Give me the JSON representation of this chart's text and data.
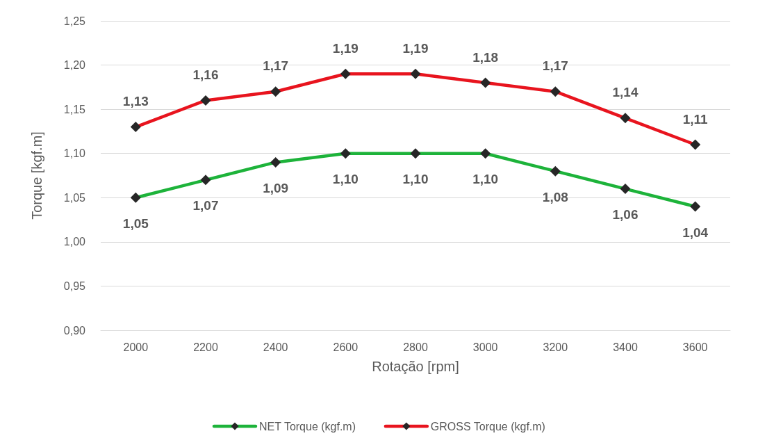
{
  "chart_data": {
    "type": "line",
    "xlabel": "Rotação [rpm]",
    "ylabel": "Torque [kgf.m]",
    "categories": [
      "2000",
      "2200",
      "2400",
      "2600",
      "2800",
      "3000",
      "3200",
      "3400",
      "3600"
    ],
    "series": [
      {
        "name": "NET Torque (kgf.m)",
        "color": "#1db33a",
        "values": [
          1.05,
          1.07,
          1.09,
          1.1,
          1.1,
          1.1,
          1.08,
          1.06,
          1.04
        ],
        "value_labels": [
          "1,05",
          "1,07",
          "1,09",
          "1,10",
          "1,10",
          "1,10",
          "1,08",
          "1,06",
          "1,04"
        ]
      },
      {
        "name": "GROSS Torque (kgf.m)",
        "color": "#e8141e",
        "values": [
          1.13,
          1.16,
          1.17,
          1.19,
          1.19,
          1.18,
          1.17,
          1.14,
          1.11
        ],
        "value_labels": [
          "1,13",
          "1,16",
          "1,17",
          "1,19",
          "1,19",
          "1,18",
          "1,17",
          "1,14",
          "1,11"
        ]
      }
    ],
    "ylim": [
      0.9,
      1.25
    ],
    "yticks": [
      {
        "value": 0.9,
        "label": "0,90"
      },
      {
        "value": 0.95,
        "label": "0,95"
      },
      {
        "value": 1.0,
        "label": "1,00"
      },
      {
        "value": 1.05,
        "label": "1,05"
      },
      {
        "value": 1.1,
        "label": "1,10"
      },
      {
        "value": 1.15,
        "label": "1,15"
      },
      {
        "value": 1.2,
        "label": "1,20"
      },
      {
        "value": 1.25,
        "label": "1,25"
      }
    ],
    "grid": "y",
    "legend": "bottom",
    "marker": "diamond",
    "line_style": "solid"
  }
}
